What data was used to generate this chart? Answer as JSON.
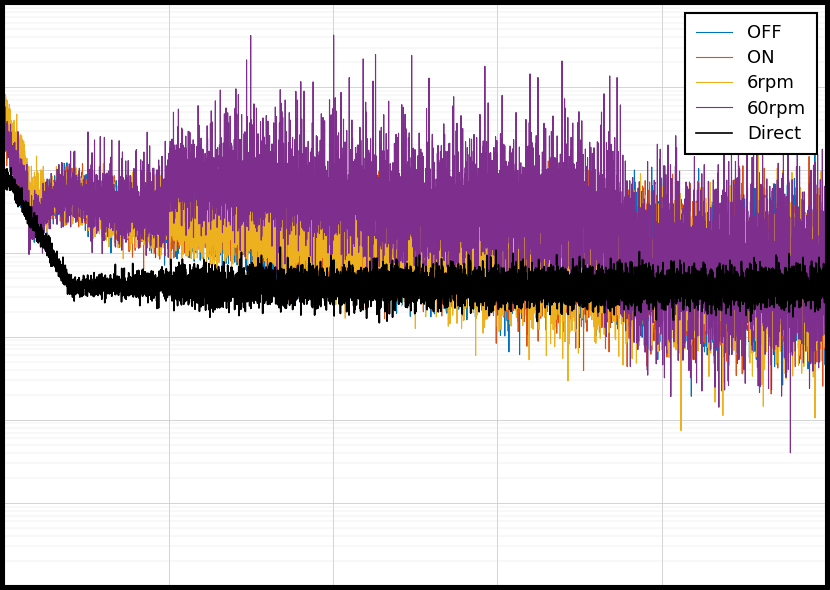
{
  "title": "",
  "xlabel": "",
  "ylabel": "",
  "xlim": [
    0,
    1000
  ],
  "legend_labels": [
    "OFF",
    "ON",
    "6rpm",
    "60rpm",
    "Direct"
  ],
  "colors": [
    "#0072BD",
    "#D95319",
    "#EDB120",
    "#7E2F8E",
    "#000000"
  ],
  "linewidths": [
    0.8,
    0.8,
    0.8,
    0.8,
    1.2
  ],
  "background_color": "#ffffff",
  "grid_color": "#b0b0b0",
  "seed": 42,
  "N": 8000
}
